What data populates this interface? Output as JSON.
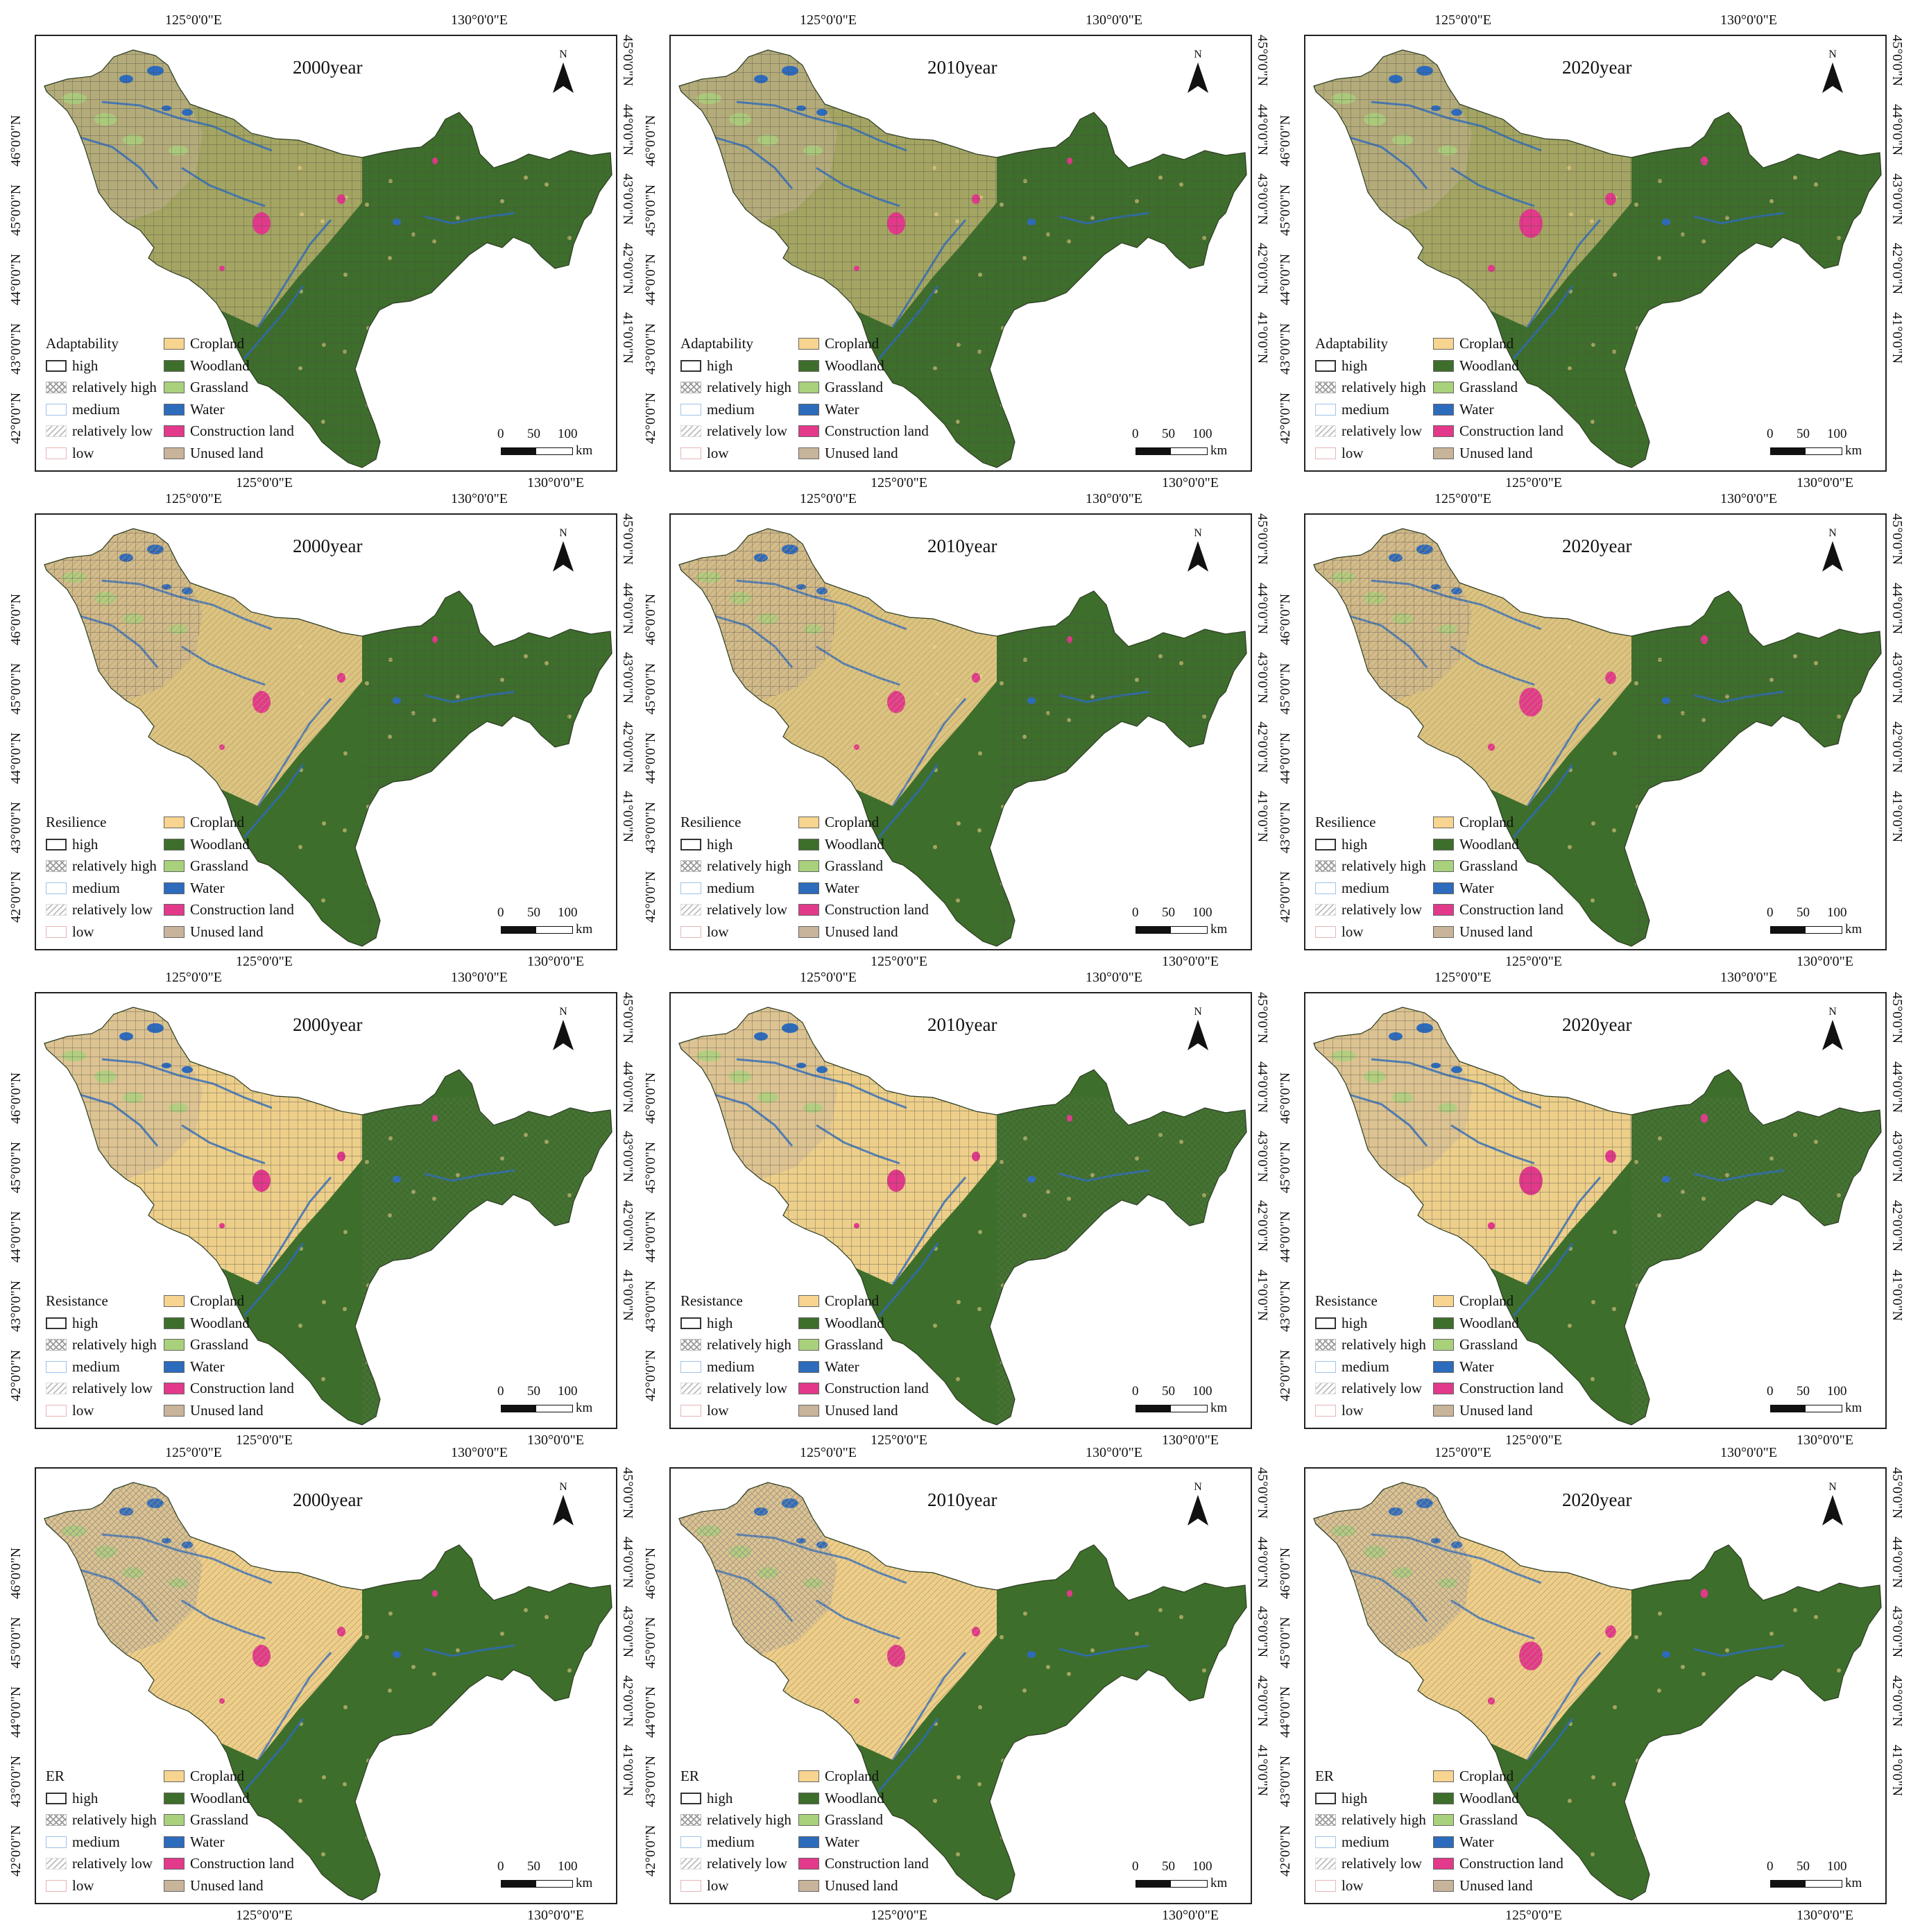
{
  "figure": {
    "row_titles": [
      "Adaptability",
      "Resilience",
      "Resistance",
      "ER"
    ],
    "years": [
      "2000year",
      "2010year",
      "2020year"
    ],
    "north_label": "N",
    "adaptation_legend": [
      "high",
      "relatively high",
      "medium",
      "relatively low",
      "low"
    ],
    "land_use_legend": [
      {
        "label": "Cropland",
        "color": "#f7d48f"
      },
      {
        "label": "Woodland",
        "color": "#3e6e2b"
      },
      {
        "label": "Grassland",
        "color": "#a9d17c"
      },
      {
        "label": "Water",
        "color": "#2d6bbd"
      },
      {
        "label": "Construction land",
        "color": "#e2398a"
      },
      {
        "label": "Unused land",
        "color": "#c8b49a"
      }
    ],
    "scale_labels": [
      "0",
      "50",
      "100"
    ],
    "scale_unit": "km",
    "lon_labels": [
      "125°0'0\"E",
      "130°0'0\"E"
    ],
    "lat_labels_left": [
      "42°0'0\"N",
      "43°0'0\"N",
      "44°0'0\"N",
      "45°0'0\"N",
      "46°0'0\"N"
    ],
    "lat_labels_right": [
      "41°0'0\"N",
      "42°0'0\"N",
      "43°0'0\"N",
      "44°0'0\"N",
      "45°0'0\"N"
    ]
  }
}
